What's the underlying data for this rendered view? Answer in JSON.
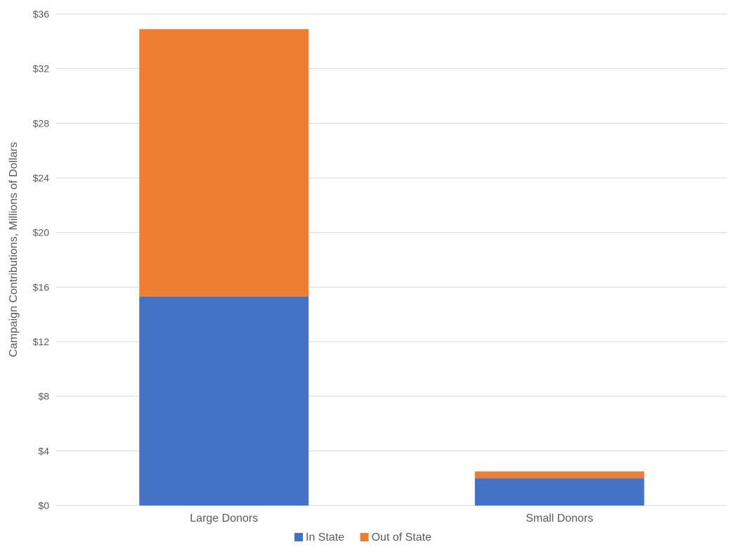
{
  "chart_data": {
    "type": "bar",
    "stacked": true,
    "title": "",
    "xlabel": "",
    "ylabel": "Campaign Contributions, Millions of Dollars",
    "ylim": [
      0,
      36
    ],
    "y_ticks": [
      0,
      4,
      8,
      12,
      16,
      20,
      24,
      28,
      32,
      36
    ],
    "y_tick_labels": [
      "$0",
      "$4",
      "$8",
      "$12",
      "$16",
      "$20",
      "$24",
      "$28",
      "$32",
      "$36"
    ],
    "categories": [
      "Large Donors",
      "Small Donors"
    ],
    "series": [
      {
        "name": "In State",
        "color": "#4472c4",
        "values": [
          15.3,
          2.0
        ]
      },
      {
        "name": "Out of State",
        "color": "#ed7d31",
        "values": [
          19.6,
          0.5
        ]
      }
    ],
    "grid": true,
    "legend": "bottom-center"
  }
}
